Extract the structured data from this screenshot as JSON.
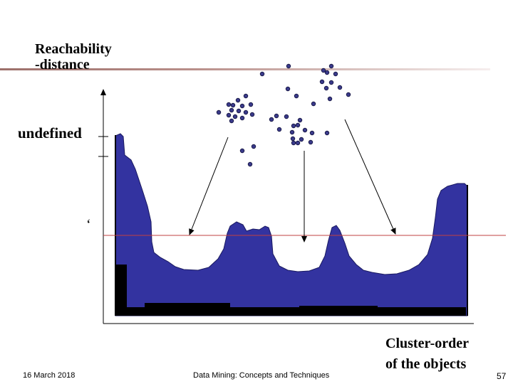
{
  "title_line1": "Reachability",
  "title_line2": "-distance",
  "y_mark_label": "undefined",
  "eps_label": "‘",
  "x_label_line1": "Cluster-order",
  "x_label_line2": "of the objects",
  "footer": {
    "date": "16 March 2018",
    "course": "Data Mining: Concepts and Techniques",
    "page": "57"
  },
  "colors": {
    "plot_fill": "#3333a0",
    "dark_bars": "#000000",
    "threshold_line": "#c04040",
    "point_fill": "#3a3a8a",
    "title_bar": "#9c6f6a"
  },
  "chart_data": {
    "type": "area",
    "description_of_series": "reachability plot",
    "threshold": "epsilon",
    "clusters": 3
  }
}
